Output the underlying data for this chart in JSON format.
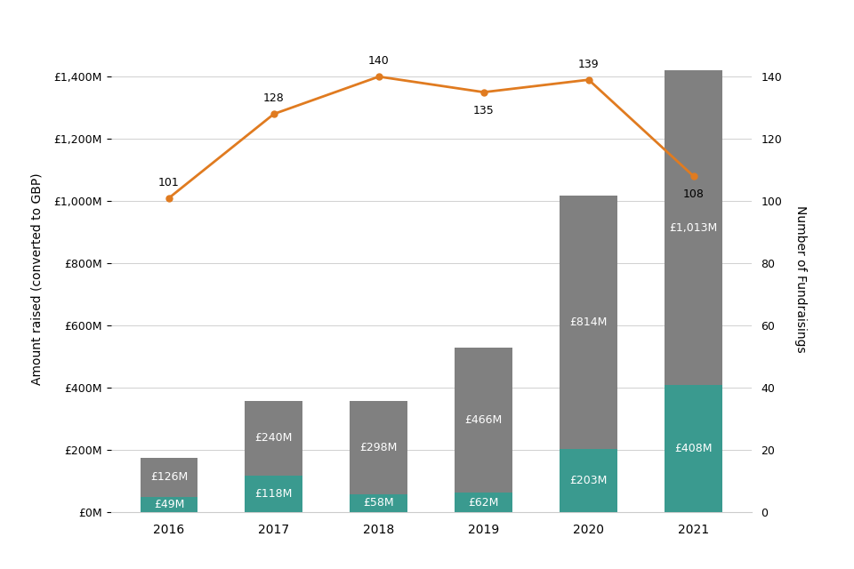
{
  "years": [
    "2016",
    "2017",
    "2018",
    "2019",
    "2020",
    "2021"
  ],
  "teal_values": [
    49,
    118,
    58,
    62,
    203,
    408
  ],
  "gray_values": [
    126,
    240,
    298,
    466,
    814,
    1013
  ],
  "teal_labels": [
    "£49M",
    "£118M",
    "£58M",
    "£62M",
    "£203M",
    "£408M"
  ],
  "gray_labels": [
    "£126M",
    "£240M",
    "£298M",
    "£466M",
    "£814M",
    "£1,013M"
  ],
  "line_values": [
    101,
    128,
    140,
    135,
    139,
    108
  ],
  "line_labels": [
    "101",
    "128",
    "140",
    "135",
    "139",
    "108"
  ],
  "teal_color": "#3a9a8f",
  "gray_color": "#808080",
  "line_color": "#e07b20",
  "ylabel_left": "Amount raised (converted to GBP)",
  "ylabel_right": "Number of Fundraisings",
  "ylim_left": [
    0,
    1500
  ],
  "ylim_right": [
    0,
    150
  ],
  "yticks_left": [
    0,
    200,
    400,
    600,
    800,
    1000,
    1200,
    1400
  ],
  "ytick_labels_left": [
    "£0M",
    "£200M",
    "£400M",
    "£600M",
    "£800M",
    "£1,000M",
    "£1,200M",
    "£1,400M"
  ],
  "yticks_right": [
    0,
    20,
    40,
    60,
    80,
    100,
    120,
    140
  ],
  "background_color": "#ffffff",
  "label_fontsize": 9,
  "line_label_fontsize": 9,
  "axis_label_fontsize": 10
}
